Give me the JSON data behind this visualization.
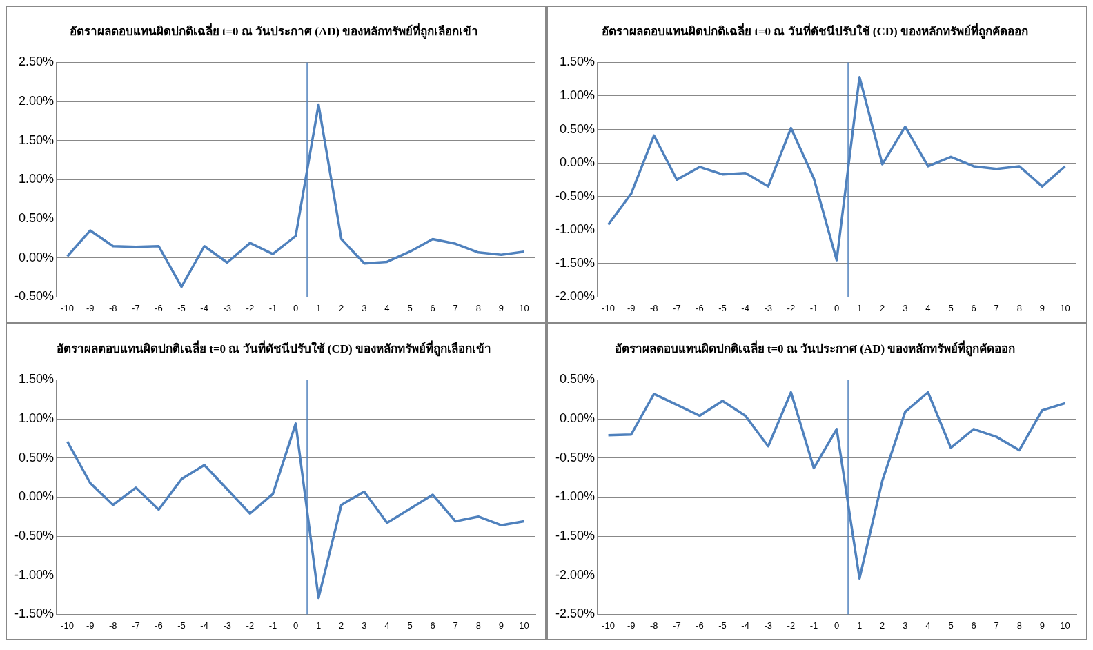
{
  "chart_data": [
    {
      "type": "line",
      "title": "อัตราผลตอบแทนผิดปกติเฉลี่ย t=0 ณ วันประกาศ (AD) ของหลักทรัพย์ที่ถูกเลือกเข้า",
      "x": [
        -10,
        -9,
        -8,
        -7,
        -6,
        -5,
        -4,
        -3,
        -2,
        -1,
        0,
        1,
        2,
        3,
        4,
        5,
        6,
        7,
        8,
        9,
        10
      ],
      "series": [
        {
          "color": "#4f81bd",
          "values": [
            0.02,
            0.35,
            0.15,
            0.14,
            0.15,
            -0.37,
            0.15,
            -0.06,
            0.19,
            0.05,
            0.28,
            1.96,
            0.24,
            -0.07,
            -0.05,
            0.08,
            0.24,
            0.18,
            0.07,
            0.04,
            0.08
          ]
        }
      ],
      "xlim": [
        -10.5,
        10.5
      ],
      "xticks": [
        -10,
        -9,
        -8,
        -7,
        -6,
        -5,
        -4,
        -3,
        -2,
        -1,
        0,
        1,
        2,
        3,
        4,
        5,
        6,
        7,
        8,
        9,
        10
      ],
      "ylim": [
        -0.5,
        2.5
      ],
      "yticks": [
        {
          "value": -0.5,
          "label": "-0.50%"
        },
        {
          "value": 0,
          "label": "0.00%"
        },
        {
          "value": 0.5,
          "label": "0.50%"
        },
        {
          "value": 1,
          "label": "1.00%"
        },
        {
          "value": 1.5,
          "label": "1.50%"
        },
        {
          "value": 2,
          "label": "2.00%"
        },
        {
          "value": 2.5,
          "label": "2.50%"
        }
      ],
      "ref_lines": [
        {
          "axis": "x",
          "value": 0.5,
          "color": "#4f81bd"
        }
      ],
      "grid": "y",
      "legend": false,
      "marker": "none",
      "line_style": "solid"
    },
    {
      "type": "line",
      "title": "อัตราผลตอบแทนผิดปกติเฉลี่ย t=0 ณ วันที่ดัชนีปรับใช้ (CD) ของหลักทรัพย์ที่ถูกคัดออก",
      "x": [
        -10,
        -9,
        -8,
        -7,
        -6,
        -5,
        -4,
        -3,
        -2,
        -1,
        0,
        1,
        2,
        3,
        4,
        5,
        6,
        7,
        8,
        9,
        10
      ],
      "series": [
        {
          "color": "#4f81bd",
          "values": [
            -0.92,
            -0.46,
            0.41,
            -0.25,
            -0.06,
            -0.17,
            -0.15,
            -0.35,
            0.52,
            -0.23,
            -1.45,
            1.28,
            -0.02,
            0.54,
            -0.05,
            0.09,
            -0.05,
            -0.09,
            -0.05,
            -0.35,
            -0.05
          ]
        }
      ],
      "xlim": [
        -10.5,
        10.5
      ],
      "xticks": [
        -10,
        -9,
        -8,
        -7,
        -6,
        -5,
        -4,
        -3,
        -2,
        -1,
        0,
        1,
        2,
        3,
        4,
        5,
        6,
        7,
        8,
        9,
        10
      ],
      "ylim": [
        -2,
        1.5
      ],
      "yticks": [
        {
          "value": -2,
          "label": "-2.00%"
        },
        {
          "value": -1.5,
          "label": "-1.50%"
        },
        {
          "value": -1,
          "label": "-1.00%"
        },
        {
          "value": -0.5,
          "label": "-0.50%"
        },
        {
          "value": 0,
          "label": "0.00%"
        },
        {
          "value": 0.5,
          "label": "0.50%"
        },
        {
          "value": 1,
          "label": "1.00%"
        },
        {
          "value": 1.5,
          "label": "1.50%"
        }
      ],
      "ref_lines": [
        {
          "axis": "x",
          "value": 0.5,
          "color": "#4f81bd"
        }
      ],
      "grid": "y",
      "legend": false,
      "marker": "none",
      "line_style": "solid"
    },
    {
      "type": "line",
      "title": "อัตราผลตอบแทนผิดปกติเฉลี่ย t=0 ณ วันที่ดัชนีปรับใช้ (CD) ของหลักทรัพย์ที่ถูกเลือกเข้า",
      "x": [
        -10,
        -9,
        -8,
        -7,
        -6,
        -5,
        -4,
        -3,
        -2,
        -1,
        0,
        1,
        2,
        3,
        4,
        5,
        6,
        7,
        8,
        9,
        10
      ],
      "series": [
        {
          "color": "#4f81bd",
          "values": [
            0.71,
            0.18,
            -0.1,
            0.12,
            -0.16,
            0.23,
            0.41,
            0.1,
            -0.21,
            0.04,
            0.94,
            -1.29,
            -0.1,
            0.07,
            -0.33,
            -0.15,
            0.03,
            -0.31,
            -0.25,
            -0.36,
            -0.31
          ]
        }
      ],
      "xlim": [
        -10.5,
        10.5
      ],
      "xticks": [
        -10,
        -9,
        -8,
        -7,
        -6,
        -5,
        -4,
        -3,
        -2,
        -1,
        0,
        1,
        2,
        3,
        4,
        5,
        6,
        7,
        8,
        9,
        10
      ],
      "ylim": [
        -1.5,
        1.5
      ],
      "yticks": [
        {
          "value": -1.5,
          "label": "-1.50%"
        },
        {
          "value": -1,
          "label": "-1.00%"
        },
        {
          "value": -0.5,
          "label": "-0.50%"
        },
        {
          "value": 0,
          "label": "0.00%"
        },
        {
          "value": 0.5,
          "label": "0.50%"
        },
        {
          "value": 1,
          "label": "1.00%"
        },
        {
          "value": 1.5,
          "label": "1.50%"
        }
      ],
      "ref_lines": [
        {
          "axis": "x",
          "value": 0.5,
          "color": "#4f81bd"
        }
      ],
      "grid": "y",
      "legend": false,
      "marker": "none",
      "line_style": "solid"
    },
    {
      "type": "line",
      "title": "อัตราผลตอบแทนผิดปกติเฉลี่ย t=0 ณ วันประกาศ (AD) ของหลักทรัพย์ที่ถูกคัดออก",
      "x": [
        -10,
        -9,
        -8,
        -7,
        -6,
        -5,
        -4,
        -3,
        -2,
        -1,
        0,
        1,
        2,
        3,
        4,
        5,
        6,
        7,
        8,
        9,
        10
      ],
      "series": [
        {
          "color": "#4f81bd",
          "values": [
            -0.21,
            -0.2,
            0.32,
            0.18,
            0.04,
            0.23,
            0.04,
            -0.35,
            0.34,
            -0.63,
            -0.13,
            -2.04,
            -0.79,
            0.09,
            0.34,
            -0.37,
            -0.13,
            -0.23,
            -0.4,
            0.11,
            0.2
          ]
        }
      ],
      "xlim": [
        -10.5,
        10.5
      ],
      "xticks": [
        -10,
        -9,
        -8,
        -7,
        -6,
        -5,
        -4,
        -3,
        -2,
        -1,
        0,
        1,
        2,
        3,
        4,
        5,
        6,
        7,
        8,
        9,
        10
      ],
      "ylim": [
        -2.5,
        0.5
      ],
      "yticks": [
        {
          "value": -2.5,
          "label": "-2.50%"
        },
        {
          "value": -2,
          "label": "-2.00%"
        },
        {
          "value": -1.5,
          "label": "-1.50%"
        },
        {
          "value": -1,
          "label": "-1.00%"
        },
        {
          "value": -0.5,
          "label": "-0.50%"
        },
        {
          "value": 0,
          "label": "0.00%"
        },
        {
          "value": 0.5,
          "label": "0.50%"
        }
      ],
      "ref_lines": [
        {
          "axis": "x",
          "value": 0.5,
          "color": "#4f81bd"
        }
      ],
      "grid": "y",
      "legend": false,
      "marker": "none",
      "line_style": "solid"
    }
  ]
}
